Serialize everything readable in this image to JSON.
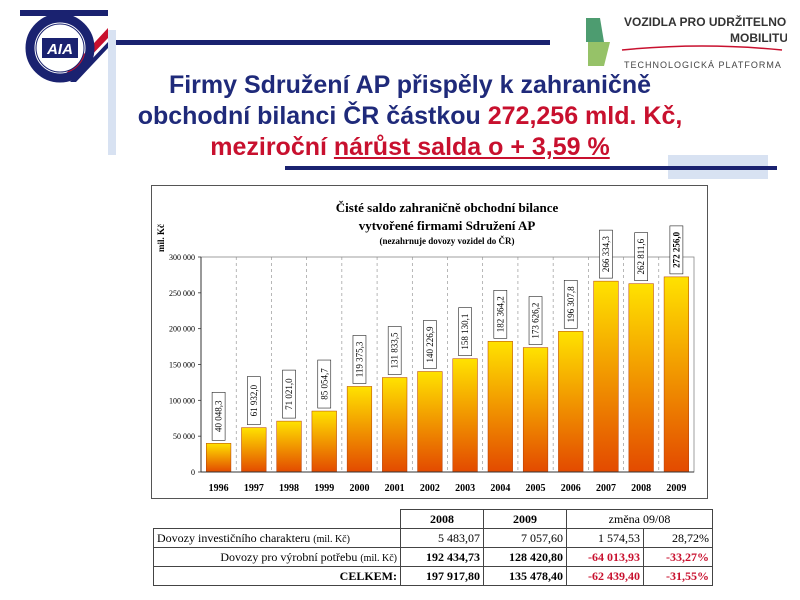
{
  "logos": {
    "aia_text": "AIA",
    "aia_ring_text": "SDRUŽENÍ AUTOMOBILOVÉHO PRŮMYSLU",
    "vozidla_line1": "VOZIDLA PRO UDRŽITELNOU",
    "vozidla_line2": "MOBILITU",
    "vozidla_line3": "TECHNOLOGICKÁ PLATFORMA"
  },
  "title": {
    "line1": "Firmy Sdružení AP přispěly k zahraničně",
    "line2_a": "obchodní bilanci ČR částkou ",
    "line2_b": "272,256 mld. Kč,",
    "line3_a": "meziroční ",
    "line3_b": "nárůst salda o + 3,59 %"
  },
  "chart_data": {
    "type": "bar",
    "title": "Čisté saldo zahraničně obchodní bilance",
    "subtitle": "vytvořené firmami Sdružení AP",
    "note": "(nezahrnuje dovozy vozidel do ČR)",
    "ylabel": "mil. Kč",
    "ylim": [
      0,
      300000
    ],
    "yticks": [
      "0",
      "50 000",
      "100 000",
      "150 000",
      "200 000",
      "250 000",
      "300 000"
    ],
    "categories": [
      "1996",
      "1997",
      "1998",
      "1999",
      "2000",
      "2001",
      "2002",
      "2003",
      "2004",
      "2005",
      "2006",
      "2007",
      "2008",
      "2009"
    ],
    "values": [
      40048.3,
      61932.0,
      71021.0,
      85054.7,
      119375.3,
      131833.5,
      140226.9,
      158130.1,
      182364.2,
      173626.2,
      196307.8,
      266334.3,
      262811.6,
      272256.0
    ],
    "labels": [
      "40 048,3",
      "61 932,0",
      "71 021,0",
      "85 054,7",
      "119 375,3",
      "131 833,5",
      "140 226,9",
      "158 130,1",
      "182 364,2",
      "173 626,2",
      "196 307,8",
      "266 334,3",
      "262 811,6",
      "272 256,0"
    ],
    "bar_color_top": "#ffe200",
    "bar_color_bottom": "#e34a00",
    "grid": true
  },
  "table": {
    "header": [
      "2008",
      "2009",
      "změna 09/08"
    ],
    "rows": [
      {
        "label": "Dovozy investičního charakteru",
        "unit": "(mil. Kč)",
        "v2008": "5 483,07",
        "v2009": "7 057,60",
        "diff": "1 574,53",
        "pct": "28,72%",
        "red": false
      },
      {
        "label": "Dovozy pro výrobní potřebu",
        "unit": "(mil. Kč)",
        "v2008": "192 434,73",
        "v2009": "128 420,80",
        "diff": "-64 013,93",
        "pct": "-33,27%",
        "red": true
      },
      {
        "label": "CELKEM:",
        "unit": "",
        "v2008": "197 917,80",
        "v2009": "135 478,40",
        "diff": "-62 439,40",
        "pct": "-31,55%",
        "red": true
      }
    ]
  },
  "colors": {
    "title_blue": "#1f2a7a",
    "accent_red": "#c8102e",
    "bar_dark": "#1a2270",
    "bar_light": "#d8e2f2"
  }
}
